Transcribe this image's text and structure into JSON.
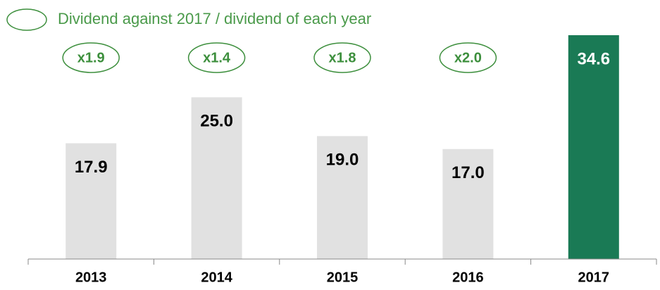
{
  "chart_data": {
    "type": "bar",
    "legend_text": "Dividend against 2017 / dividend of each year",
    "categories": [
      "2013",
      "2014",
      "2015",
      "2016",
      "2017"
    ],
    "values": [
      17.9,
      25.0,
      19.0,
      17.0,
      34.6
    ],
    "value_labels": [
      "17.9",
      "25.0",
      "19.0",
      "17.0",
      "34.6"
    ],
    "colors": [
      "#e1e1e1",
      "#e1e1e1",
      "#e1e1e1",
      "#e1e1e1",
      "#1a7a55"
    ],
    "ratios": [
      "x1.9",
      "x1.4",
      "x1.8",
      "x2.0"
    ],
    "ratio_color": "#3d8f3d"
  }
}
